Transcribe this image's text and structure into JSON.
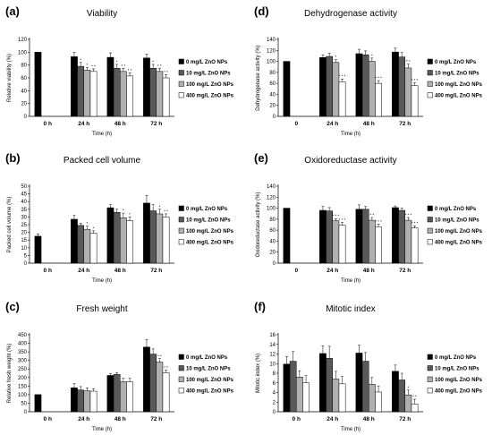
{
  "figure": {
    "legend_labels": [
      "0 mg/L ZnO NPs",
      "10 mg/L ZnO NPs",
      "100 mg/L ZnO NPs",
      "400 mg/L ZnO NPs"
    ],
    "legend_position": "right",
    "series_colors": [
      "#000000",
      "#595959",
      "#b0b0b0",
      "#ffffff"
    ]
  },
  "chart_data": [
    {
      "panel": "(a)",
      "type": "bar",
      "title": "Viability",
      "ylabel": "Relative viability (%)",
      "xlabel": "Time (h)",
      "ylim": [
        0,
        120
      ],
      "yticks": [
        0,
        20,
        40,
        60,
        80,
        100,
        120
      ],
      "categories": [
        "0 h",
        "24 h",
        "48 h",
        "72 h"
      ],
      "series": [
        {
          "name": "0 mg/L ZnO NPs",
          "values": [
            100,
            93,
            92,
            91
          ],
          "errors": [
            0,
            7,
            7,
            6
          ]
        },
        {
          "name": "10 mg/L ZnO NPs",
          "values": [
            null,
            78,
            75,
            75
          ],
          "errors": [
            null,
            6,
            6,
            6
          ]
        },
        {
          "name": "100 mg/L ZnO NPs",
          "values": [
            null,
            72,
            70,
            70
          ],
          "errors": [
            null,
            4,
            5,
            5
          ]
        },
        {
          "name": "400 mg/L ZnO NPs",
          "values": [
            null,
            70,
            63,
            60
          ],
          "errors": [
            null,
            4,
            5,
            5
          ]
        }
      ],
      "annotations": [
        {
          "category": 1,
          "series": 1,
          "text": "*"
        },
        {
          "category": 1,
          "series": 2,
          "text": "*"
        },
        {
          "category": 1,
          "series": 3,
          "text": "* *"
        },
        {
          "category": 2,
          "series": 1,
          "text": "*"
        },
        {
          "category": 2,
          "series": 2,
          "text": "* *"
        },
        {
          "category": 2,
          "series": 3,
          "text": "* *"
        },
        {
          "category": 3,
          "series": 1,
          "text": "*"
        },
        {
          "category": 3,
          "series": 2,
          "text": "* *"
        },
        {
          "category": 3,
          "series": 3,
          "text": "* *"
        }
      ]
    },
    {
      "panel": "(b)",
      "type": "bar",
      "title": "Packed cell volume",
      "ylabel": "Packed cell volume (%)",
      "xlabel": "Time (h)",
      "ylim": [
        0,
        50
      ],
      "yticks": [
        0,
        5,
        10,
        15,
        20,
        25,
        30,
        35,
        40,
        45,
        50
      ],
      "categories": [
        "0 h",
        "24 h",
        "48 h",
        "72 h"
      ],
      "series": [
        {
          "name": "0 mg/L ZnO NPs",
          "values": [
            17.5,
            28.5,
            36,
            39
          ],
          "errors": [
            1.5,
            2.5,
            2,
            5
          ]
        },
        {
          "name": "10 mg/L ZnO NPs",
          "values": [
            null,
            24.5,
            33,
            34
          ],
          "errors": [
            null,
            1.5,
            2,
            4
          ]
        },
        {
          "name": "100 mg/L ZnO NPs",
          "values": [
            null,
            22,
            29.5,
            32
          ],
          "errors": [
            null,
            2,
            3,
            3
          ]
        },
        {
          "name": "400 mg/L ZnO NPs",
          "values": [
            null,
            19.5,
            27.5,
            30
          ],
          "errors": [
            null,
            1.5,
            2.5,
            2
          ]
        }
      ],
      "annotations": [
        {
          "category": 1,
          "series": 2,
          "text": "*"
        },
        {
          "category": 1,
          "series": 3,
          "text": "*"
        },
        {
          "category": 2,
          "series": 2,
          "text": "*"
        },
        {
          "category": 2,
          "series": 3,
          "text": "*"
        },
        {
          "category": 3,
          "series": 2,
          "text": "*"
        },
        {
          "category": 3,
          "series": 3,
          "text": "* *"
        }
      ]
    },
    {
      "panel": "(c)",
      "type": "bar",
      "title": "Fresh weight",
      "ylabel": "Relative fresh weight (%)",
      "xlabel": "Time (h)",
      "ylim": [
        0,
        450
      ],
      "yticks": [
        0,
        50,
        100,
        150,
        200,
        250,
        300,
        350,
        400,
        450
      ],
      "categories": [
        "0 h",
        "24 h",
        "48 h",
        "72 h"
      ],
      "series": [
        {
          "name": "0 mg/L ZnO NPs",
          "values": [
            100,
            140,
            212,
            378
          ],
          "errors": [
            0,
            25,
            10,
            45
          ]
        },
        {
          "name": "10 mg/L ZnO NPs",
          "values": [
            null,
            127,
            218,
            337
          ],
          "errors": [
            null,
            20,
            10,
            30
          ]
        },
        {
          "name": "100 mg/L ZnO NPs",
          "values": [
            null,
            122,
            175,
            290
          ],
          "errors": [
            null,
            18,
            20,
            20
          ]
        },
        {
          "name": "400 mg/L ZnO NPs",
          "values": [
            null,
            120,
            175,
            228
          ],
          "errors": [
            null,
            15,
            20,
            15
          ]
        }
      ],
      "annotations": [
        {
          "category": 3,
          "series": 2,
          "text": "* *"
        },
        {
          "category": 3,
          "series": 3,
          "text": "* *"
        }
      ]
    },
    {
      "panel": "(d)",
      "type": "bar",
      "title": "Dehydrogenase activity",
      "ylabel": "Dehydrogenase activity (%)",
      "xlabel": "Time (h)",
      "ylim": [
        0,
        140
      ],
      "yticks": [
        0,
        20,
        40,
        60,
        80,
        100,
        120,
        140
      ],
      "categories": [
        "0",
        "24 h",
        "48 h",
        "72 h"
      ],
      "series": [
        {
          "name": "0 mg/L ZnO NPs",
          "values": [
            100,
            107,
            114,
            117
          ],
          "errors": [
            0,
            5,
            8,
            7
          ]
        },
        {
          "name": "10 mg/L ZnO NPs",
          "values": [
            null,
            109,
            112,
            108
          ],
          "errors": [
            null,
            6,
            7,
            8
          ]
        },
        {
          "name": "100 mg/L ZnO NPs",
          "values": [
            null,
            98,
            100,
            88
          ],
          "errors": [
            null,
            5,
            6,
            7
          ]
        },
        {
          "name": "400 mg/L ZnO NPs",
          "values": [
            null,
            63,
            60,
            56
          ],
          "errors": [
            null,
            5,
            5,
            5
          ]
        }
      ],
      "annotations": [
        {
          "category": 1,
          "series": 2,
          "text": "*"
        },
        {
          "category": 1,
          "series": 3,
          "text": "* * *"
        },
        {
          "category": 2,
          "series": 2,
          "text": "*"
        },
        {
          "category": 2,
          "series": 3,
          "text": "* * *"
        },
        {
          "category": 3,
          "series": 2,
          "text": "* *"
        },
        {
          "category": 3,
          "series": 3,
          "text": "* * *"
        }
      ]
    },
    {
      "panel": "(e)",
      "type": "bar",
      "title": "Oxidoreductase activity",
      "ylabel": "Oxidoreductase activity (%)",
      "xlabel": "Time (h)",
      "ylim": [
        0,
        140
      ],
      "yticks": [
        0,
        20,
        40,
        60,
        80,
        100,
        120,
        140
      ],
      "categories": [
        "0",
        "24 h",
        "48 h",
        "72 h"
      ],
      "series": [
        {
          "name": "0 mg/L ZnO NPs",
          "values": [
            100,
            96,
            98,
            101
          ],
          "errors": [
            0,
            7,
            8,
            3
          ]
        },
        {
          "name": "10 mg/L ZnO NPs",
          "values": [
            null,
            95,
            98,
            96
          ],
          "errors": [
            null,
            6,
            5,
            4
          ]
        },
        {
          "name": "100 mg/L ZnO NPs",
          "values": [
            null,
            77,
            78,
            78
          ],
          "errors": [
            null,
            4,
            5,
            5
          ]
        },
        {
          "name": "400 mg/L ZnO NPs",
          "values": [
            null,
            69,
            66,
            64
          ],
          "errors": [
            null,
            5,
            5,
            4
          ]
        }
      ],
      "annotations": [
        {
          "category": 1,
          "series": 2,
          "text": "* * *"
        },
        {
          "category": 1,
          "series": 3,
          "text": "* * *"
        },
        {
          "category": 2,
          "series": 2,
          "text": "* *"
        },
        {
          "category": 2,
          "series": 3,
          "text": "* * *"
        },
        {
          "category": 3,
          "series": 2,
          "text": "* * *"
        },
        {
          "category": 3,
          "series": 3,
          "text": "* * *"
        }
      ]
    },
    {
      "panel": "(f)",
      "type": "bar",
      "title": "Mitotic index",
      "ylabel": "Mitotic index (%)",
      "xlabel": "Time (h)",
      "ylim": [
        0,
        16
      ],
      "yticks": [
        0,
        2,
        4,
        6,
        8,
        10,
        12,
        14,
        16
      ],
      "categories": [
        "0 h",
        "24 h",
        "48 h",
        "72 h"
      ],
      "series": [
        {
          "name": "0 mg/L ZnO NPs",
          "values": [
            9.9,
            12.1,
            12.2,
            8.4
          ],
          "errors": [
            1.6,
            1.6,
            1.6,
            1.3
          ]
        },
        {
          "name": "10 mg/L ZnO NPs",
          "values": [
            10.5,
            11.1,
            10.5,
            6.6
          ],
          "errors": [
            2.0,
            2.5,
            1.8,
            1.4
          ]
        },
        {
          "name": "100 mg/L ZnO NPs",
          "values": [
            7.2,
            6.8,
            5.7,
            3.5
          ],
          "errors": [
            1.3,
            1.6,
            1.4,
            1.0
          ]
        },
        {
          "name": "400 mg/L ZnO NPs",
          "values": [
            6.0,
            5.8,
            4.1,
            1.6
          ],
          "errors": [
            1.5,
            1.5,
            1.2,
            1.0
          ]
        }
      ],
      "annotations": [
        {
          "category": 3,
          "series": 2,
          "text": "*"
        },
        {
          "category": 3,
          "series": 3,
          "text": "* *"
        }
      ]
    }
  ]
}
